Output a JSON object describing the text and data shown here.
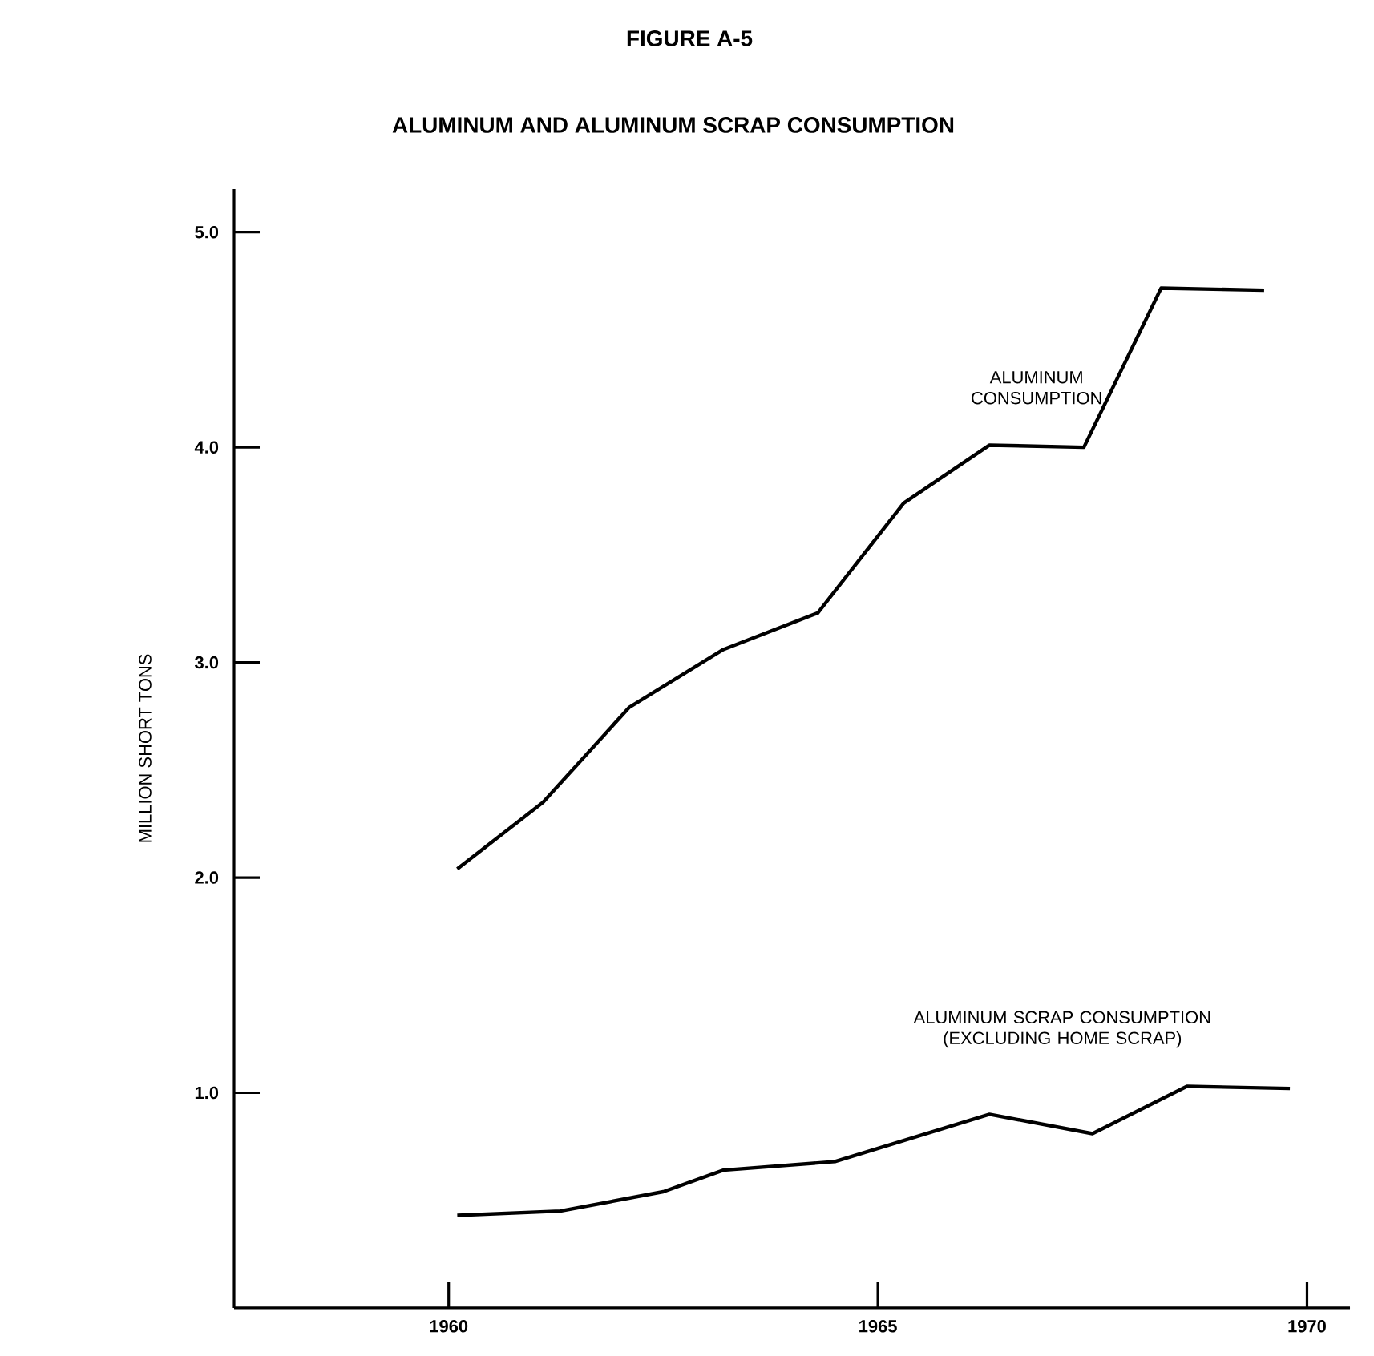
{
  "chart_data": {
    "type": "line",
    "title": "FIGURE A-5",
    "subtitle": "ALUMINUM AND ALUMINUM SCRAP CONSUMPTION",
    "ylabel": "MILLION SHORT TONS",
    "xlim": [
      1957.5,
      1970.5
    ],
    "xticks": [
      1960,
      1965,
      1970
    ],
    "ylim": [
      0,
      5.2
    ],
    "yticks": [
      {
        "value": 1,
        "label": "1.0"
      },
      {
        "value": 2,
        "label": "2.0"
      },
      {
        "value": 3,
        "label": "3.0"
      },
      {
        "value": 4,
        "label": "4.0"
      },
      {
        "value": 5,
        "label": "5.0"
      }
    ],
    "grid": false,
    "marker": "none",
    "line_style": "solid",
    "series": [
      {
        "name": "ALUMINUM CONSUMPTION",
        "color": "#000000",
        "x": [
          1960.1,
          1961.1,
          1962.1,
          1963.2,
          1964.3,
          1965.3,
          1966.3,
          1967.4,
          1968.3,
          1969.5
        ],
        "values": [
          2.04,
          2.35,
          2.79,
          3.06,
          3.23,
          3.74,
          4.01,
          4.0,
          4.74,
          4.73
        ]
      },
      {
        "name": "ALUMINUM SCRAP CONSUMPTION (EXCLUDING HOME SCRAP)",
        "color": "#000000",
        "x": [
          1960.1,
          1961.3,
          1962.5,
          1963.2,
          1964.5,
          1966.3,
          1967.5,
          1968.6,
          1969.8
        ],
        "values": [
          0.43,
          0.45,
          0.54,
          0.64,
          0.68,
          0.9,
          0.81,
          1.03,
          1.02
        ]
      }
    ]
  }
}
